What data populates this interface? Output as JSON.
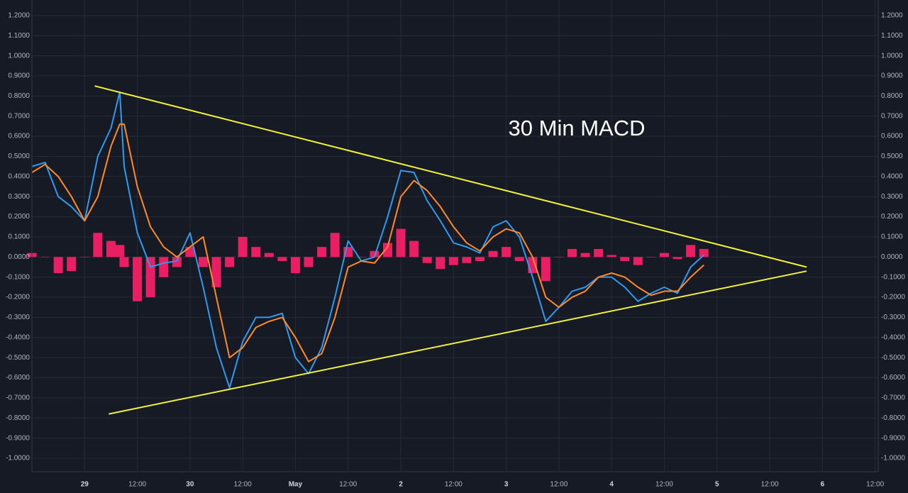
{
  "chart_data": {
    "type": "line",
    "annotation": "30 Min MACD",
    "x": [
      -12,
      -9,
      -6,
      -3,
      0,
      3,
      6,
      8,
      9,
      12,
      15,
      18,
      21,
      24,
      27,
      30,
      33,
      36,
      39,
      42,
      45,
      48,
      51,
      54,
      57,
      60,
      63,
      66,
      69,
      72,
      75,
      78,
      81,
      84,
      87,
      90,
      93,
      96,
      99,
      102,
      105,
      108,
      111,
      114,
      117,
      120,
      123,
      126,
      129,
      132,
      135,
      138,
      141
    ],
    "series": [
      {
        "color": "#2e9bf0",
        "values": [
          0.45,
          0.47,
          0.3,
          0.25,
          0.18,
          0.5,
          0.64,
          0.82,
          0.45,
          0.12,
          -0.05,
          -0.03,
          -0.02,
          0.12,
          -0.15,
          -0.45,
          -0.65,
          -0.42,
          -0.3,
          -0.3,
          -0.28,
          -0.5,
          -0.58,
          -0.45,
          -0.2,
          0.08,
          -0.02,
          0.0,
          0.2,
          0.43,
          0.42,
          0.28,
          0.18,
          0.07,
          0.05,
          0.02,
          0.15,
          0.18,
          0.1,
          -0.1,
          -0.32,
          -0.25,
          -0.17,
          -0.15,
          -0.1,
          -0.1,
          -0.15,
          -0.22,
          -0.18,
          -0.15,
          -0.18,
          -0.05,
          0.01
        ]
      },
      {
        "color": "#ff8a2a",
        "values": [
          0.42,
          0.46,
          0.4,
          0.3,
          0.18,
          0.3,
          0.55,
          0.66,
          0.66,
          0.35,
          0.15,
          0.05,
          0.0,
          0.05,
          0.1,
          -0.2,
          -0.5,
          -0.45,
          -0.35,
          -0.32,
          -0.3,
          -0.4,
          -0.52,
          -0.48,
          -0.3,
          -0.05,
          -0.02,
          -0.03,
          0.05,
          0.3,
          0.38,
          0.33,
          0.25,
          0.15,
          0.07,
          0.03,
          0.1,
          0.14,
          0.12,
          0.0,
          -0.2,
          -0.25,
          -0.2,
          -0.17,
          -0.1,
          -0.08,
          -0.1,
          -0.15,
          -0.19,
          -0.17,
          -0.17,
          -0.1,
          -0.04
        ]
      }
    ],
    "histogram": {
      "color": "#e91e63",
      "values": [
        0.02,
        0.0,
        -0.08,
        -0.07,
        0.0,
        0.12,
        0.08,
        0.06,
        -0.05,
        -0.22,
        -0.2,
        -0.1,
        -0.05,
        0.05,
        -0.05,
        -0.15,
        -0.05,
        0.1,
        0.05,
        0.02,
        -0.02,
        -0.08,
        -0.05,
        0.05,
        0.12,
        0.05,
        0.0,
        0.03,
        0.07,
        0.14,
        0.08,
        -0.03,
        -0.06,
        -0.04,
        -0.03,
        -0.02,
        0.03,
        0.05,
        -0.02,
        -0.08,
        -0.12,
        0.0,
        0.04,
        0.02,
        0.04,
        0.01,
        -0.02,
        -0.04,
        0.0,
        0.02,
        -0.01,
        0.06,
        0.04
      ]
    },
    "trendlines": [
      {
        "color": "#f2f23c",
        "x": [
          2.3,
          164.4
        ],
        "values": [
          0.85,
          -0.05
        ]
      },
      {
        "color": "#f2f23c",
        "x": [
          5.5,
          164.4
        ],
        "values": [
          -0.78,
          -0.07
        ]
      }
    ],
    "xlim": [
      -12,
      180.7
    ],
    "ylim": [
      -1.067,
      1.249
    ],
    "xticks": [
      {
        "value": 0,
        "label": "29"
      },
      {
        "value": 12,
        "label": "12:00"
      },
      {
        "value": 24,
        "label": "30"
      },
      {
        "value": 36,
        "label": "12:00"
      },
      {
        "value": 48,
        "label": "May"
      },
      {
        "value": 60,
        "label": "12:00"
      },
      {
        "value": 72,
        "label": "2"
      },
      {
        "value": 84,
        "label": "12:00"
      },
      {
        "value": 96,
        "label": "3"
      },
      {
        "value": 108,
        "label": "12:00"
      },
      {
        "value": 120,
        "label": "4"
      },
      {
        "value": 132,
        "label": "12:00"
      },
      {
        "value": 144,
        "label": "5"
      },
      {
        "value": 156,
        "label": "12:00"
      },
      {
        "value": 168,
        "label": "6"
      },
      {
        "value": 180,
        "label": "12:00"
      }
    ],
    "yticks": [
      {
        "value": 1.2,
        "label": "1.2000"
      },
      {
        "value": 1.1,
        "label": "1.1000"
      },
      {
        "value": 1.0,
        "label": "1.0000"
      },
      {
        "value": 0.9,
        "label": "0.9000"
      },
      {
        "value": 0.8,
        "label": "0.8000"
      },
      {
        "value": 0.7,
        "label": "0.7000"
      },
      {
        "value": 0.6,
        "label": "0.6000"
      },
      {
        "value": 0.5,
        "label": "0.5000"
      },
      {
        "value": 0.4,
        "label": "0.4000"
      },
      {
        "value": 0.3,
        "label": "0.3000"
      },
      {
        "value": 0.2,
        "label": "0.2000"
      },
      {
        "value": 0.1,
        "label": "0.1000"
      },
      {
        "value": 0,
        "label": "0.0000"
      },
      {
        "value": -0.1,
        "label": "-0.1000"
      },
      {
        "value": -0.2,
        "label": "-0.2000"
      },
      {
        "value": -0.3,
        "label": "-0.3000"
      },
      {
        "value": -0.4,
        "label": "-0.4000"
      },
      {
        "value": -0.5,
        "label": "-0.5000"
      },
      {
        "value": -0.6,
        "label": "-0.6000"
      },
      {
        "value": -0.7,
        "label": "-0.7000"
      },
      {
        "value": -0.8,
        "label": "-0.8000"
      },
      {
        "value": -0.9,
        "label": "-0.9000"
      },
      {
        "value": -1.0,
        "label": "-1.0000"
      }
    ],
    "grid": true
  }
}
